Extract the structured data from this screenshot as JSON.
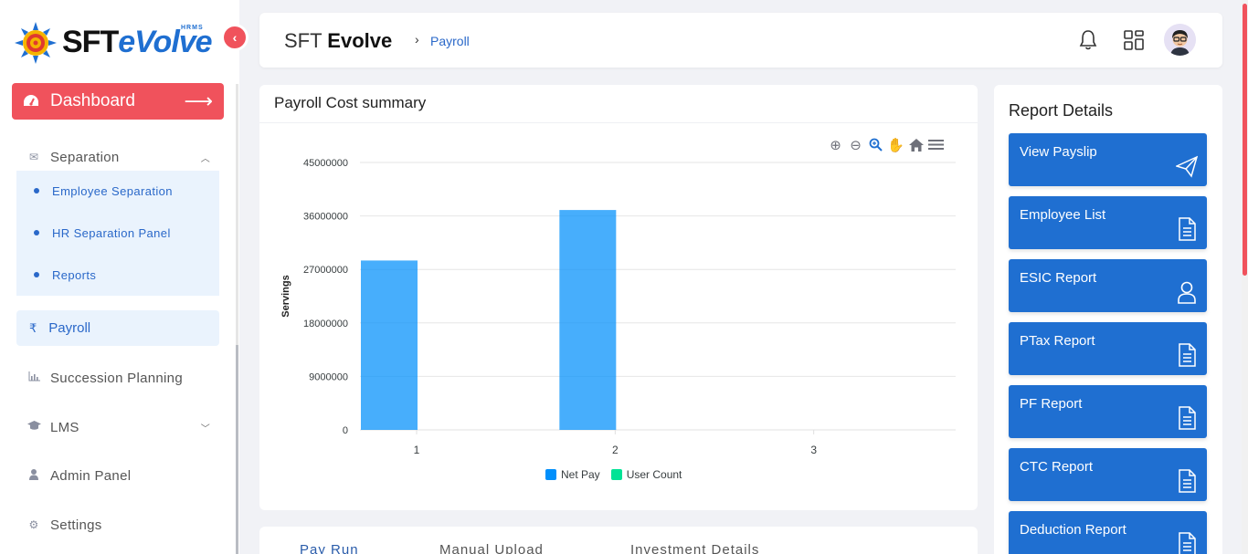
{
  "brand": {
    "name_part1": "SFT",
    "name_part2": "eVolve",
    "tag": "HRMS"
  },
  "sidebar": {
    "dashboard_label": "Dashboard",
    "separation": {
      "label": "Separation",
      "items": [
        {
          "label": "Employee Separation"
        },
        {
          "label": "HR Separation Panel"
        },
        {
          "label": "Reports"
        }
      ]
    },
    "payroll_label": "Payroll",
    "payroll_icon": "₹",
    "succession_label": "Succession Planning",
    "lms_label": "LMS",
    "admin_label": "Admin Panel",
    "settings_label": "Settings"
  },
  "header": {
    "title_light": "SFT",
    "title_bold": "Evolve",
    "breadcrumb": "Payroll"
  },
  "chart_card": {
    "title": "Payroll Cost summary"
  },
  "chart_data": {
    "type": "bar",
    "title": "",
    "xlabel": "",
    "ylabel": "Servings",
    "categories": [
      "1",
      "2",
      "3"
    ],
    "ylim": [
      0,
      45000000
    ],
    "yticks": [
      "45000000",
      "36000000",
      "27000000",
      "18000000",
      "9000000",
      "0"
    ],
    "series": [
      {
        "name": "Net Pay",
        "values": [
          28500000,
          37000000,
          0
        ],
        "color": "#008ffb"
      },
      {
        "name": "User Count",
        "values": [
          0,
          0,
          0
        ],
        "color": "#00e396"
      }
    ],
    "grid": true,
    "legend": "bottom"
  },
  "report_details": {
    "title": "Report Details",
    "buttons": [
      {
        "label": "View Payslip",
        "icon": "paper-plane-icon"
      },
      {
        "label": "Employee List",
        "icon": "document-icon"
      },
      {
        "label": "ESIC Report",
        "icon": "user-icon"
      },
      {
        "label": "PTax Report",
        "icon": "document-icon"
      },
      {
        "label": "PF Report",
        "icon": "document-icon"
      },
      {
        "label": "CTC Report",
        "icon": "document-icon"
      },
      {
        "label": "Deduction Report",
        "icon": "document-icon"
      }
    ]
  },
  "tabs": [
    {
      "label": "Pay Run"
    },
    {
      "label": "Manual Upload"
    },
    {
      "label": "Investment Details"
    }
  ]
}
